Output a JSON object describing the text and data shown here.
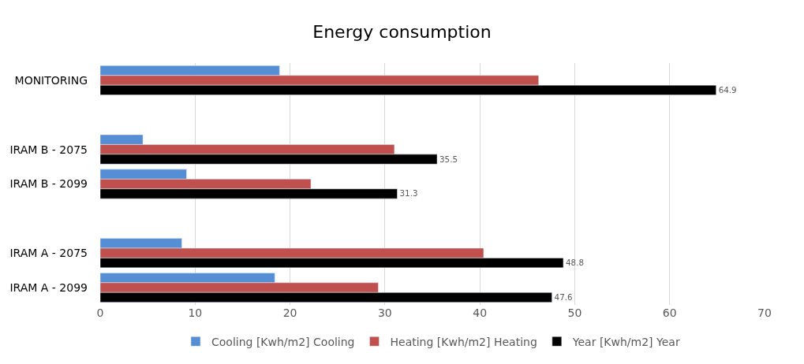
{
  "chart_data": {
    "type": "bar",
    "orientation": "horizontal",
    "title": "Energy consumption",
    "categories": [
      "MONITORING",
      null,
      "IRAM B - 2075",
      "IRAM B - 2099",
      null,
      "IRAM A - 2075",
      "IRAM A - 2099"
    ],
    "series": [
      {
        "name": "Cooling [Kwh/m2] Cooling",
        "color": "#558ed5",
        "values": [
          18.9,
          null,
          4.5,
          9.1,
          null,
          8.6,
          18.4
        ]
      },
      {
        "name": "Heating [Kwh/m2] Heating",
        "color": "#c0504d",
        "values": [
          46.2,
          null,
          31.0,
          22.2,
          null,
          40.4,
          29.3
        ]
      },
      {
        "name": "Year [Kwh/m2] Year",
        "color": "#000000",
        "values": [
          64.9,
          null,
          35.5,
          31.3,
          null,
          48.8,
          47.6
        ],
        "value_labels": [
          "64.9",
          null,
          "35.5",
          "31.3",
          null,
          "48.8",
          "47.6"
        ]
      }
    ],
    "xlim": [
      0,
      70
    ],
    "xticks": [
      0,
      10,
      20,
      30,
      40,
      50,
      60,
      70
    ],
    "grid": "x",
    "legend": "bottom"
  }
}
